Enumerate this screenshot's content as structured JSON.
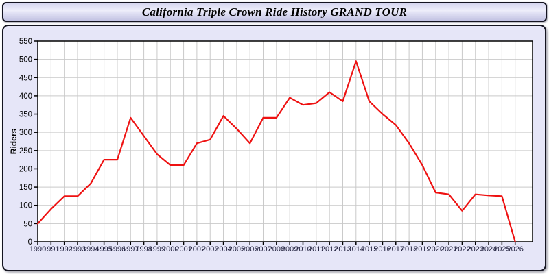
{
  "header": {
    "title": "California Triple Crown Ride History GRAND TOUR"
  },
  "chart_data": {
    "type": "line",
    "title": "California Triple Crown Ride History GRAND TOUR",
    "xlabel": "",
    "ylabel": "Riders",
    "x": [
      1990,
      1991,
      1992,
      1993,
      1994,
      1995,
      1996,
      1997,
      1998,
      1999,
      2000,
      2001,
      2002,
      2003,
      2004,
      2005,
      2006,
      2007,
      2008,
      2009,
      2010,
      2011,
      2012,
      2013,
      2014,
      2015,
      2016,
      2017,
      2018,
      2019,
      2020,
      2021,
      2022,
      2023,
      2024,
      2025,
      2026
    ],
    "series": [
      {
        "name": "Riders",
        "color": "#ee1111",
        "values": [
          50,
          90,
          125,
          125,
          160,
          225,
          225,
          340,
          290,
          240,
          210,
          210,
          270,
          280,
          345,
          310,
          270,
          340,
          340,
          395,
          375,
          380,
          410,
          385,
          495,
          385,
          350,
          320,
          270,
          210,
          135,
          130,
          85,
          130,
          127,
          125,
          0
        ]
      }
    ],
    "ylim": [
      0,
      550
    ],
    "ytick_step": 50,
    "grid": true,
    "legend_position": "none"
  },
  "colors": {
    "line": "#ee1111",
    "grid": "#c9c9c9",
    "plot_background": "#ffffff",
    "panel_background": "#e6e6f8",
    "axis": "#000000",
    "x_label_color": "#22223f",
    "y_label_color": "#000000"
  }
}
